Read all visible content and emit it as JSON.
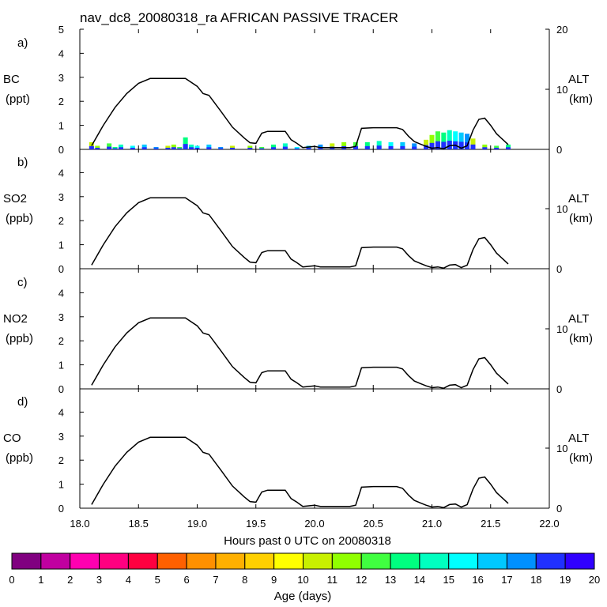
{
  "chart_data": {
    "type": "line",
    "title": "nav_dc8_20080318_ra AFRICAN PASSIVE TRACER",
    "xlabel": "Hours past 0 UTC on 20080318",
    "xlim": [
      18.0,
      22.0
    ],
    "x_ticks": [
      "18.0",
      "18.5",
      "19.0",
      "19.5",
      "20.0",
      "20.5",
      "21.0",
      "21.5",
      "22.0"
    ],
    "x_tick_values": [
      18.0,
      18.5,
      19.0,
      19.5,
      20.0,
      20.5,
      21.0,
      21.5,
      22.0
    ],
    "left_ylim": [
      0,
      5
    ],
    "left_ticks": [
      "0",
      "1",
      "2",
      "3",
      "4",
      "5"
    ],
    "right_axis": {
      "label": "ALT",
      "unit": "(km)",
      "ylim": [
        0,
        20
      ],
      "ticks": [
        "0",
        "10",
        "20"
      ]
    },
    "panels": [
      {
        "letter": "a)",
        "species": "BC",
        "unit": "(ppt)",
        "show_top_tick": true
      },
      {
        "letter": "b)",
        "species": "SO2",
        "unit": "(ppb)",
        "show_top_tick": false
      },
      {
        "letter": "c)",
        "species": "NO2",
        "unit": "(ppb)",
        "show_top_tick": false
      },
      {
        "letter": "d)",
        "species": "CO",
        "unit": "(ppb)",
        "show_top_tick": false
      }
    ],
    "altitude_series": {
      "name": "ALT (km)",
      "x": [
        18.1,
        18.2,
        18.3,
        18.4,
        18.5,
        18.6,
        18.7,
        18.8,
        18.9,
        19.0,
        19.05,
        19.1,
        19.2,
        19.3,
        19.4,
        19.45,
        19.5,
        19.55,
        19.6,
        19.65,
        19.75,
        19.8,
        19.85,
        19.9,
        19.95,
        20.0,
        20.05,
        20.1,
        20.2,
        20.3,
        20.35,
        20.4,
        20.5,
        20.6,
        20.7,
        20.75,
        20.8,
        20.85,
        20.9,
        20.95,
        21.0,
        21.05,
        21.1,
        21.15,
        21.2,
        21.25,
        21.3,
        21.35,
        21.4,
        21.45,
        21.5,
        21.55,
        21.6,
        21.65
      ],
      "y": [
        0.6,
        4.0,
        7.0,
        9.3,
        11.0,
        11.8,
        11.8,
        11.8,
        11.8,
        10.5,
        9.3,
        9.0,
        6.4,
        3.7,
        1.9,
        1.1,
        1.0,
        2.7,
        3.0,
        3.0,
        3.0,
        1.6,
        1.0,
        0.3,
        0.4,
        0.5,
        0.3,
        0.3,
        0.3,
        0.3,
        0.5,
        3.5,
        3.6,
        3.6,
        3.6,
        3.3,
        2.2,
        1.3,
        0.9,
        0.5,
        0.2,
        0.3,
        0.1,
        0.6,
        0.7,
        0.2,
        0.6,
        3.2,
        5.0,
        5.2,
        4.0,
        2.6,
        1.7,
        0.8
      ]
    },
    "tracer_series": {
      "name": "BC tracer (ppt)",
      "x": [
        18.1,
        18.15,
        18.25,
        18.3,
        18.35,
        18.45,
        18.55,
        18.65,
        18.75,
        18.8,
        18.85,
        18.9,
        18.95,
        19.0,
        19.1,
        19.2,
        19.3,
        19.45,
        19.55,
        19.65,
        19.75,
        19.85,
        19.95,
        20.05,
        20.15,
        20.25,
        20.35,
        20.45,
        20.55,
        20.65,
        20.75,
        20.85,
        20.95,
        21.0,
        21.05,
        21.1,
        21.15,
        21.2,
        21.25,
        21.3,
        21.35,
        21.45,
        21.55,
        21.65
      ],
      "values": [
        0.3,
        0.15,
        0.25,
        0.1,
        0.2,
        0.15,
        0.2,
        0.1,
        0.15,
        0.2,
        0.1,
        0.5,
        0.2,
        0.15,
        0.2,
        0.1,
        0.15,
        0.15,
        0.1,
        0.2,
        0.25,
        0.1,
        0.15,
        0.2,
        0.25,
        0.3,
        0.3,
        0.3,
        0.35,
        0.3,
        0.3,
        0.25,
        0.4,
        0.6,
        0.75,
        0.7,
        0.8,
        0.75,
        0.7,
        0.65,
        0.45,
        0.2,
        0.15,
        0.2
      ]
    },
    "colorbar": {
      "label": "Age (days)",
      "ticks": [
        "0",
        "1",
        "2",
        "3",
        "4",
        "5",
        "6",
        "7",
        "8",
        "9",
        "10",
        "11",
        "12",
        "13",
        "14",
        "15",
        "16",
        "17",
        "18",
        "19",
        "20"
      ],
      "colors": [
        "#800080",
        "#c000a0",
        "#ff00b0",
        "#ff0080",
        "#ff0040",
        "#ff6000",
        "#ff9000",
        "#ffb000",
        "#ffd000",
        "#ffff00",
        "#c8f000",
        "#90ff00",
        "#40ff40",
        "#00ff80",
        "#00ffc0",
        "#00ffff",
        "#00c8ff",
        "#0090ff",
        "#2030ff",
        "#3000ff"
      ]
    }
  }
}
